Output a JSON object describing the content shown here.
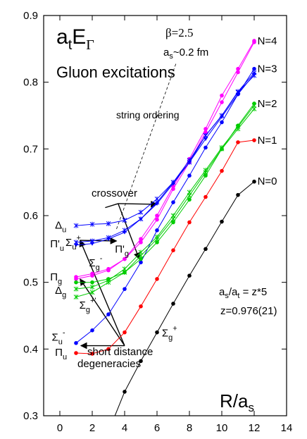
{
  "chart_data": {
    "type": "line",
    "title": "",
    "xlabel": "R/a_s",
    "ylabel": "a_t E_Γ",
    "xlim": [
      -1,
      14
    ],
    "ylim": [
      0.3,
      0.9
    ],
    "xticks": [
      "0",
      "2",
      "4",
      "6",
      "8",
      "10",
      "12",
      "14"
    ],
    "yticks": [
      "0.3",
      "0.4",
      "0.5",
      "0.6",
      "0.7",
      "0.8",
      "0.9"
    ],
    "labels": {
      "ylabel_main": "a",
      "ylabel_sub": "t",
      "ylabel_E": "E",
      "ylabel_gamma": "Γ",
      "xlabel_R": "R/a",
      "xlabel_sub": "s",
      "heading": "Gluon excitations",
      "beta": "β=2.5",
      "spacing_a": "a",
      "spacing_sub": "s",
      "spacing_rest": "~0.2 fm",
      "string_ordering": "string ordering",
      "crossover": "crossover",
      "short1": "short distance",
      "short2": "degeneracies",
      "ratio_a": "a",
      "ratio_s": "s",
      "ratio_slash": "/a",
      "ratio_t": "t",
      "ratio_rest": " = z*5",
      "z_value": "z=0.976(21)"
    },
    "level_labels": [
      {
        "text": "N=4",
        "x": 12.2,
        "y": 0.862
      },
      {
        "text": "N=3",
        "x": 12.2,
        "y": 0.82
      },
      {
        "text": "N=2",
        "x": 12.2,
        "y": 0.768
      },
      {
        "text": "N=1",
        "x": 12.2,
        "y": 0.713
      },
      {
        "text": "N=0",
        "x": 12.2,
        "y": 0.652
      }
    ],
    "state_labels": [
      {
        "base": "Δ",
        "sub": "u",
        "sup": "",
        "x": -0.3,
        "y": 0.586
      },
      {
        "base": "Π'",
        "sub": "u",
        "sup": "",
        "x": -0.6,
        "y": 0.558
      },
      {
        "base": "Σ",
        "sub": "u",
        "sup": "+",
        "x": 0.35,
        "y": 0.56
      },
      {
        "base": "Π'",
        "sub": "g",
        "sup": "",
        "x": 3.4,
        "y": 0.55
      },
      {
        "base": "Σ",
        "sub": "g",
        "sup": "-",
        "x": 1.8,
        "y": 0.529
      },
      {
        "base": "Π",
        "sub": "g",
        "sup": "",
        "x": -0.6,
        "y": 0.508
      },
      {
        "base": "Δ",
        "sub": "g",
        "sup": "",
        "x": -0.3,
        "y": 0.488
      },
      {
        "base": "Σ",
        "sub": "g",
        "sup": "+'",
        "x": 1.2,
        "y": 0.466
      },
      {
        "base": "Σ",
        "sub": "u",
        "sup": "-",
        "x": -0.5,
        "y": 0.418
      },
      {
        "base": "Π",
        "sub": "u",
        "sup": "",
        "x": -0.3,
        "y": 0.395
      },
      {
        "base": "Σ",
        "sub": "g",
        "sup": "+",
        "x": 6.3,
        "y": 0.424
      }
    ],
    "series": [
      {
        "name": "Σg+",
        "color": "#000000",
        "marker": "dot",
        "x": [
          4,
          5,
          6,
          7,
          8,
          9,
          10,
          11,
          12
        ],
        "y": [
          0.336,
          0.382,
          0.425,
          0.468,
          0.51,
          0.55,
          0.591,
          0.631,
          0.651
        ]
      },
      {
        "name": "Πu",
        "color": "#ff0000",
        "marker": "dot",
        "x": [
          1,
          2,
          3,
          4,
          5,
          6,
          7,
          8,
          9,
          10,
          11,
          12
        ],
        "y": [
          0.394,
          0.393,
          0.4,
          0.425,
          0.464,
          0.505,
          0.548,
          0.59,
          0.628,
          0.667,
          0.71,
          0.713
        ]
      },
      {
        "name": "Σu-",
        "color": "#0000ff",
        "marker": "dot",
        "x": [
          1,
          2,
          3,
          4,
          5,
          6,
          7,
          8,
          9,
          10,
          11,
          12
        ],
        "y": [
          0.409,
          0.428,
          0.452,
          0.49,
          0.53,
          0.578,
          0.62,
          0.66,
          0.702,
          0.74,
          0.782,
          0.82
        ]
      },
      {
        "name": "Πg",
        "color": "#ff00ff",
        "marker": "dot",
        "x": [
          1,
          2,
          3,
          4,
          5,
          6,
          7,
          8,
          9,
          10,
          11,
          12
        ],
        "y": [
          0.505,
          0.51,
          0.518,
          0.535,
          0.565,
          0.6,
          0.644,
          0.685,
          0.73,
          0.78,
          0.82,
          0.862
        ]
      },
      {
        "name": "Σg-",
        "color": "#ff00ff",
        "marker": "dot",
        "x": [
          1,
          2,
          3,
          4,
          5,
          6,
          7,
          8,
          9,
          10,
          11,
          12
        ],
        "y": [
          0.508,
          0.513,
          0.52,
          0.535,
          0.56,
          0.594,
          0.64,
          0.68,
          0.725,
          0.77,
          0.815,
          0.86
        ]
      },
      {
        "name": "Δg",
        "color": "#00cc00",
        "marker": "dot",
        "x": [
          1,
          2,
          3,
          4,
          5,
          6,
          7,
          8,
          9,
          10,
          11,
          12
        ],
        "y": [
          0.5,
          0.5,
          0.505,
          0.515,
          0.535,
          0.56,
          0.59,
          0.624,
          0.66,
          0.7,
          0.735,
          0.768
        ]
      },
      {
        "name": "Σg+'",
        "color": "#00cc00",
        "marker": "cross",
        "x": [
          1,
          2,
          3,
          4,
          5,
          6,
          7,
          8,
          9,
          10,
          11,
          12
        ],
        "y": [
          0.478,
          0.485,
          0.5,
          0.515,
          0.54,
          0.565,
          0.595,
          0.63,
          0.665,
          0.7,
          0.73,
          0.76
        ]
      },
      {
        "name": "Πg'",
        "color": "#00cc00",
        "marker": "cross",
        "x": [
          1,
          2,
          3,
          4,
          5,
          6,
          7,
          8,
          9,
          10,
          11,
          12
        ],
        "y": [
          0.49,
          0.493,
          0.503,
          0.52,
          0.545,
          0.568,
          0.6,
          0.635,
          0.668,
          0.702,
          0.733,
          0.765
        ]
      },
      {
        "name": "Δu",
        "color": "#0000ff",
        "marker": "cross",
        "x": [
          1,
          2,
          3,
          4,
          5,
          6,
          7,
          8,
          9,
          10,
          11,
          12
        ],
        "y": [
          0.585,
          0.587,
          0.588,
          0.593,
          0.605,
          0.625,
          0.65,
          0.68,
          0.72,
          0.75,
          0.785,
          0.81
        ]
      },
      {
        "name": "Πu'",
        "color": "#0000ff",
        "marker": "cross",
        "x": [
          1,
          2,
          3,
          4,
          5,
          6,
          7,
          8,
          9,
          10,
          11,
          12
        ],
        "y": [
          0.56,
          0.562,
          0.567,
          0.578,
          0.595,
          0.62,
          0.65,
          0.683,
          0.72,
          0.75,
          0.786,
          0.814
        ]
      },
      {
        "name": "Σu+",
        "color": "#0000ff",
        "marker": "triangle",
        "x": [
          1,
          2,
          3,
          4,
          5,
          6,
          7,
          8,
          9,
          10,
          11,
          12
        ],
        "y": [
          0.556,
          0.558,
          0.565,
          0.575,
          0.595,
          0.618,
          0.648,
          0.68,
          0.715,
          0.748,
          0.782,
          0.812
        ]
      }
    ]
  }
}
